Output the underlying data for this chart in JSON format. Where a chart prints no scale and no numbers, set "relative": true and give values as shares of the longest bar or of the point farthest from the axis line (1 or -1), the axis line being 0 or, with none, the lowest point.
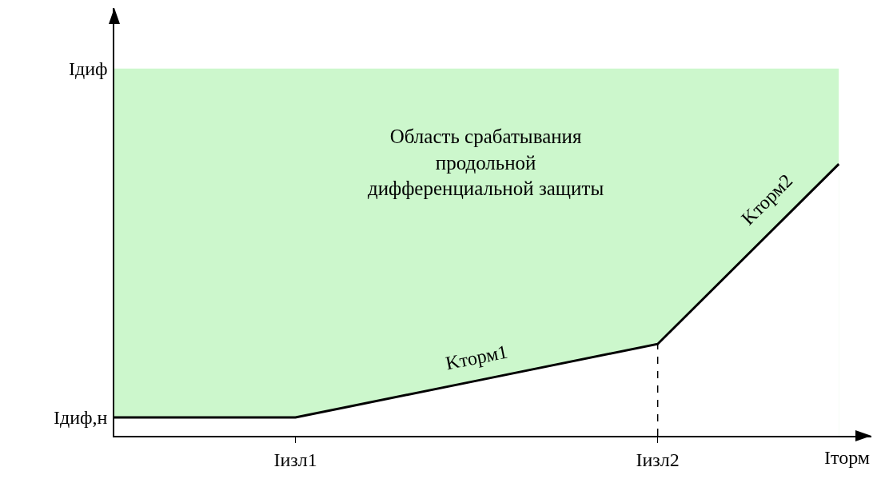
{
  "chart_data": {
    "type": "line",
    "relative": true,
    "xlabel": "Iторм",
    "categories": [
      null,
      "Iизл1",
      null,
      "Iизл2",
      null
    ],
    "series": [
      {
        "type": "area",
        "color": "#ccf7cc",
        "values": [
          1,
          1,
          1,
          1,
          1
        ]
      },
      {
        "color": "#000000",
        "values": [
          0.05,
          0.05,
          0.15,
          0.25,
          0.74
        ]
      }
    ],
    "ref_lines": [
      {
        "axis": "x",
        "value": "Iизл2",
        "line_style": "dashed",
        "color": "#000000"
      }
    ],
    "annotations": [
      "Область срабатывания продольной дифференциальной защиты",
      "Kторм1",
      "Kторм2",
      "Iдиф",
      "Iдиф,н"
    ],
    "grid": false,
    "marker": "none",
    "line_style": "solid"
  }
}
